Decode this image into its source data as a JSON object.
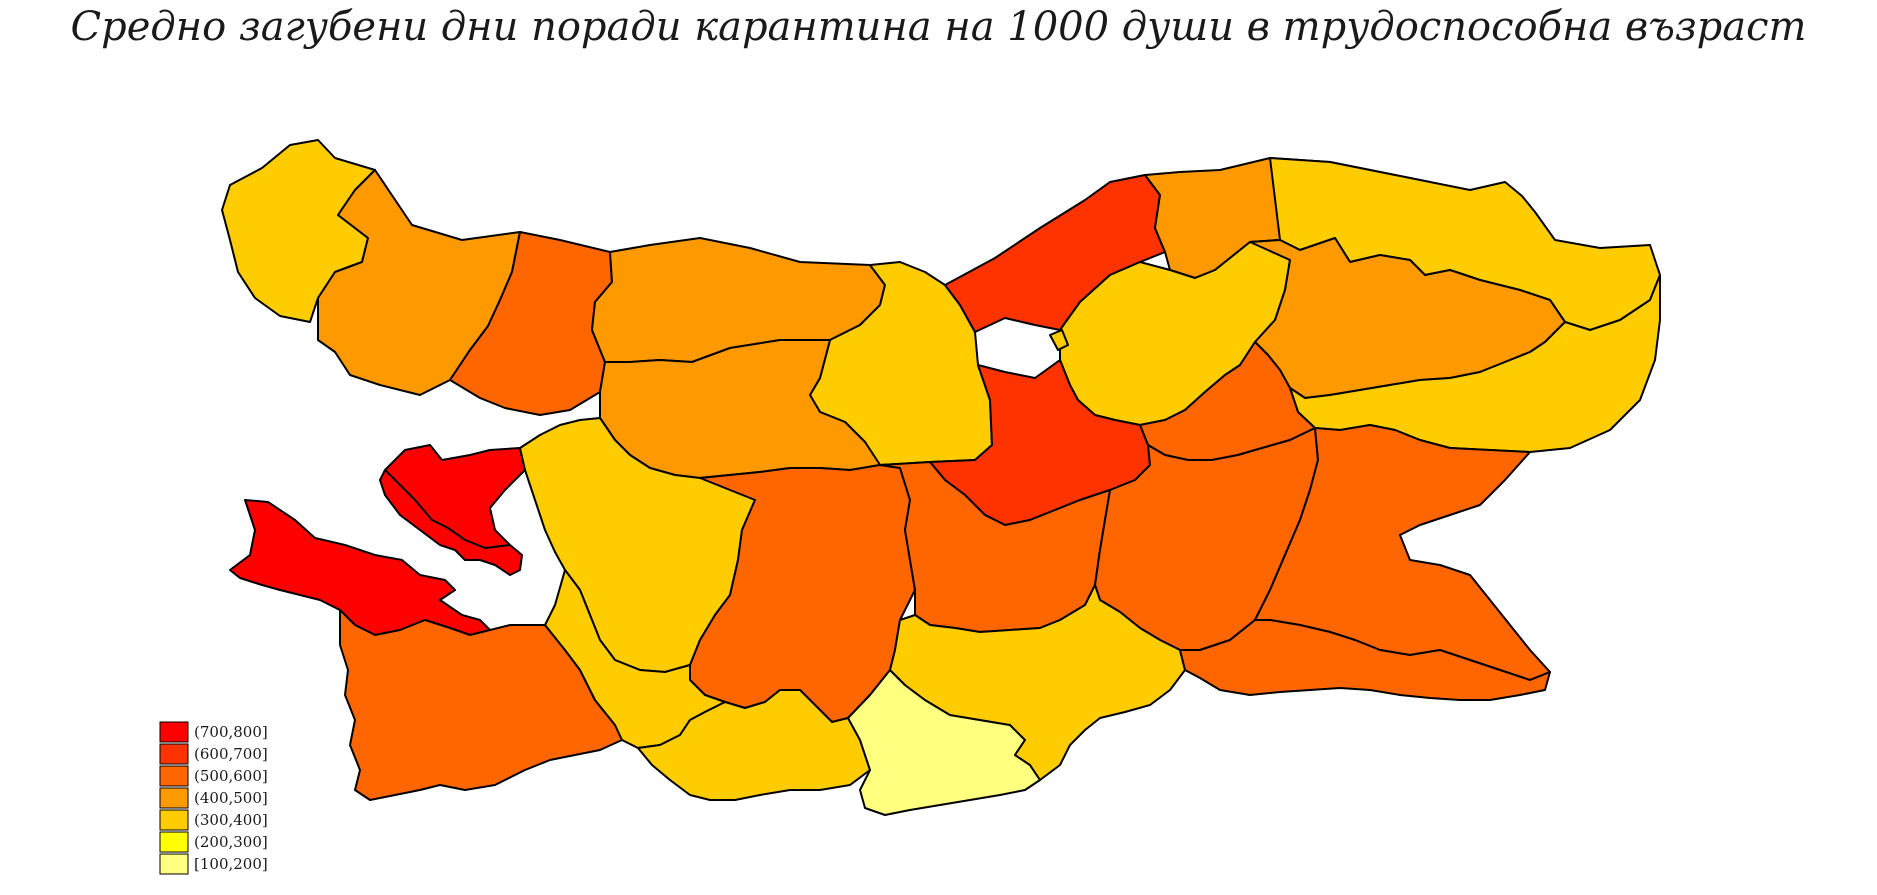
{
  "title": "Средно загубени дни поради карантина на 1000 души в трудоспособна възраст",
  "legend": [
    {
      "label": "(700,800]",
      "color": "#ff0000"
    },
    {
      "label": "(600,700]",
      "color": "#ff3300"
    },
    {
      "label": "(500,600]",
      "color": "#ff6600"
    },
    {
      "label": "(400,500]",
      "color": "#ff9900"
    },
    {
      "label": "(300,400]",
      "color": "#ffcc00"
    },
    {
      "label": "(200,300]",
      "color": "#ffff00"
    },
    {
      "label": "[100,200]",
      "color": "#ffff80"
    }
  ],
  "regions": [
    {
      "class": "(300,400]"
    },
    {
      "class": "(400,500]"
    },
    {
      "class": "(500,600]"
    },
    {
      "class": "(400,500]"
    },
    {
      "class": "(300,400]"
    },
    {
      "class": "(600,700]"
    },
    {
      "class": "(400,500]"
    },
    {
      "class": "(300,400]"
    },
    {
      "class": "(300,400]"
    },
    {
      "class": "(400,500]"
    },
    {
      "class": "(300,400]"
    },
    {
      "class": "(500,600]"
    },
    {
      "class": "(600,700]"
    },
    {
      "class": "(400,500]"
    },
    {
      "class": "(300,400]"
    },
    {
      "class": "(700,800]"
    },
    {
      "class": "(300,400]"
    },
    {
      "class": "(500,600]"
    },
    {
      "class": "(500,600]"
    },
    {
      "class": "(500,600]"
    },
    {
      "class": "(500,600]"
    },
    {
      "class": "(700,800]"
    },
    {
      "class": "(700,800]"
    },
    {
      "class": "(500,600]"
    },
    {
      "class": "(300,400]"
    },
    {
      "class": "(300,400]"
    },
    {
      "class": "[100,200]"
    },
    {
      "class": "(300,400]"
    },
    {
      "class": "(500,600]"
    }
  ]
}
